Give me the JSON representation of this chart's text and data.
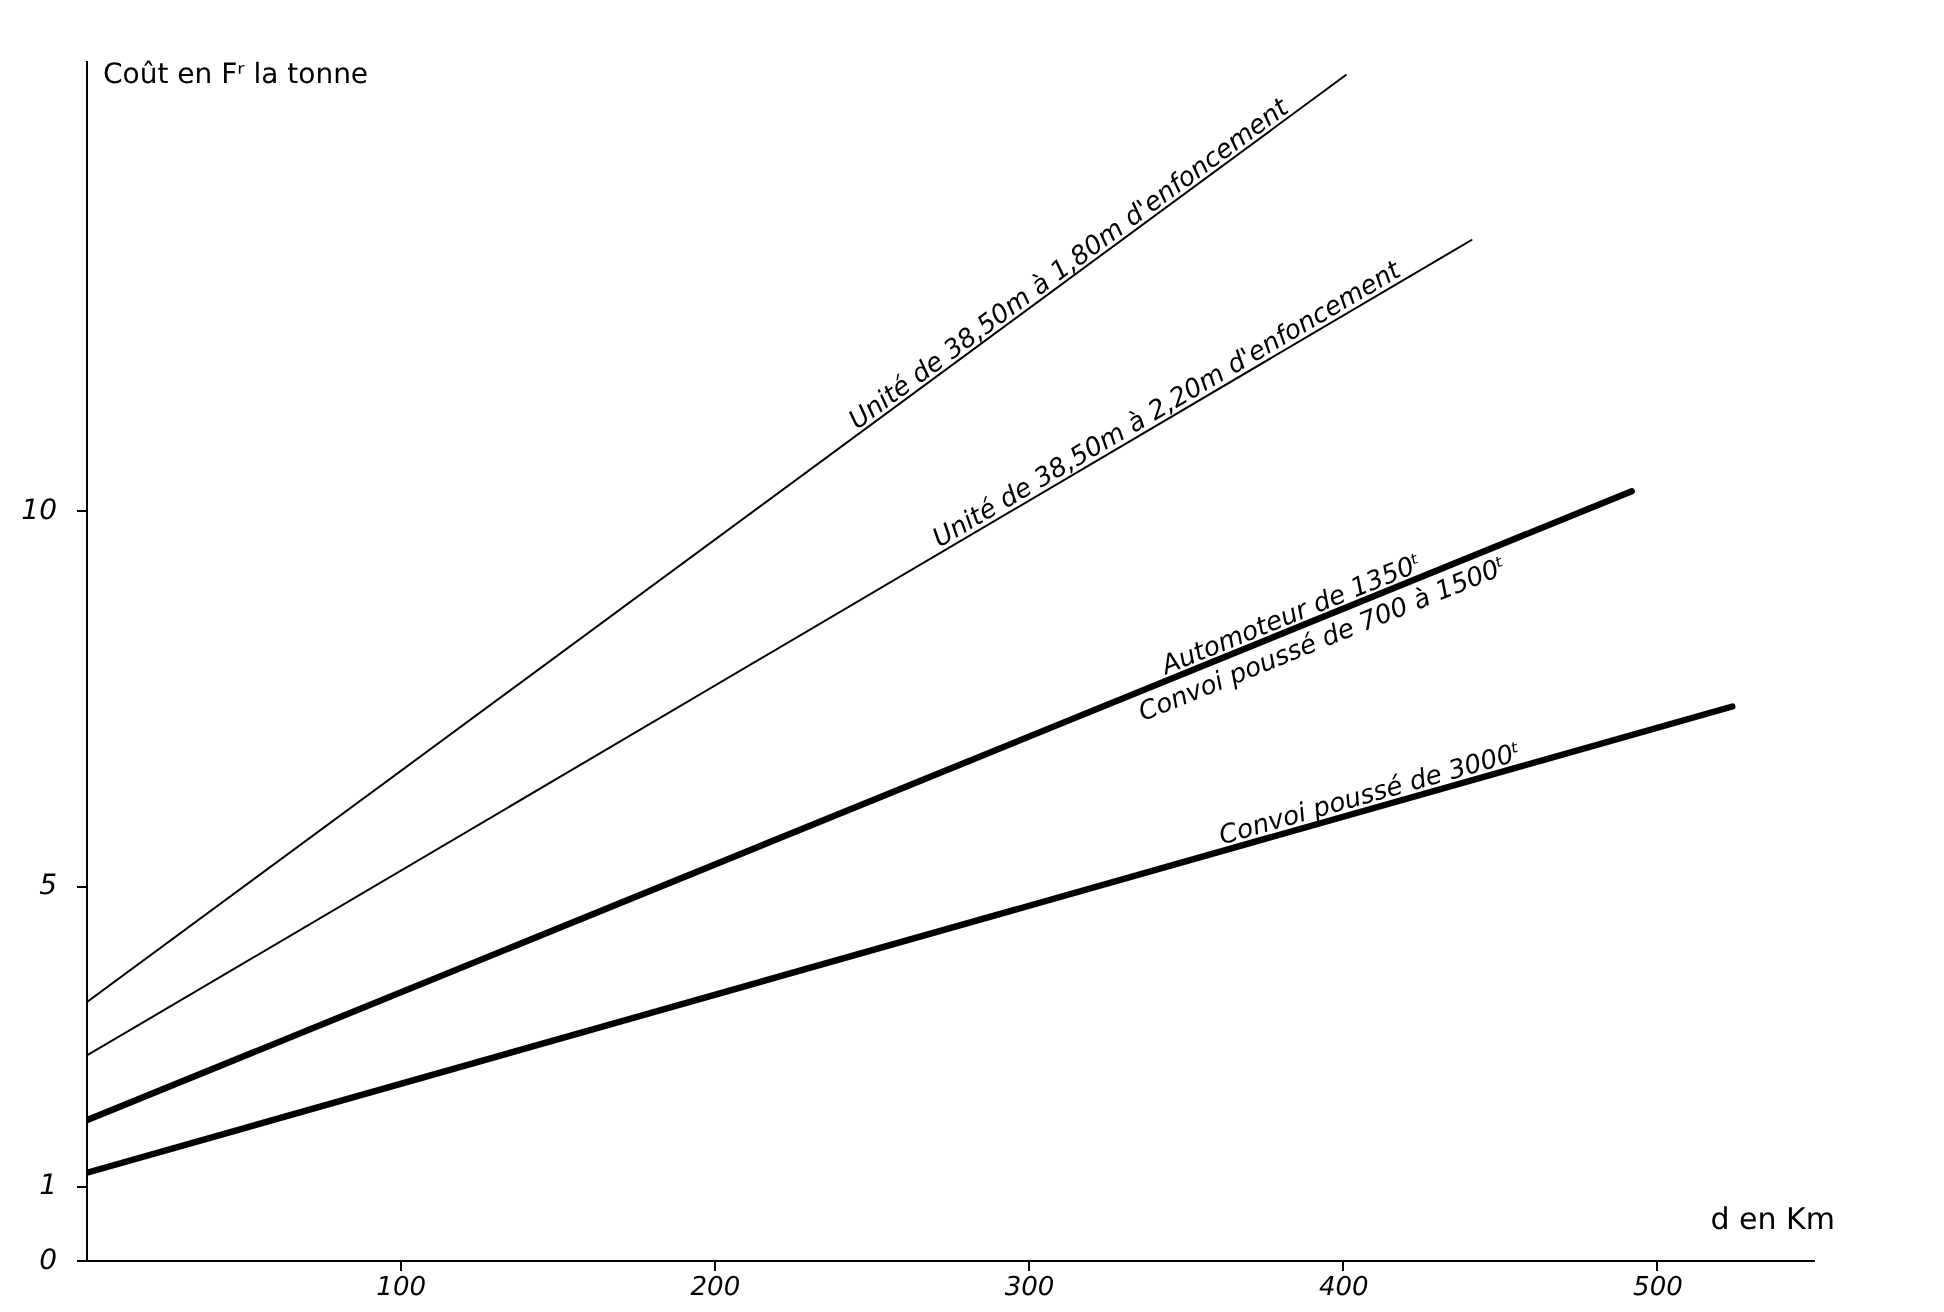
{
  "chart_data": {
    "type": "line",
    "xlabel": "d en Km",
    "ylabel": "Coût en Fʳ la tonne",
    "xlim": [
      0,
      550
    ],
    "ylim": [
      0,
      16
    ],
    "xticks": [
      100,
      200,
      300,
      400,
      500
    ],
    "yticks": [
      0,
      1,
      5,
      10
    ],
    "grid": false,
    "legend": false,
    "marker": "none",
    "line_style": "solid",
    "annotations": [
      "Convoi poussé de 700 à 1500ᵗ"
    ],
    "series": [
      {
        "name": "Unité de 38,50m à 1,80m d'enfoncement",
        "color": "#000000",
        "x": [
          0,
          401
        ],
        "values": [
          3.43,
          15.8
        ]
      },
      {
        "name": "Unité de 38,50m à 2,20m d'enfoncement",
        "color": "#000000",
        "x": [
          0,
          441
        ],
        "values": [
          2.72,
          13.6
        ]
      },
      {
        "name": "Automoteur de 1350ᵗ",
        "color": "#000000",
        "x": [
          0,
          492
        ],
        "values": [
          1.86,
          10.25
        ]
      },
      {
        "name": "Convoi poussé de 3000ᵗ",
        "color": "#000000",
        "x": [
          0,
          524
        ],
        "values": [
          1.16,
          7.38
        ]
      }
    ]
  }
}
